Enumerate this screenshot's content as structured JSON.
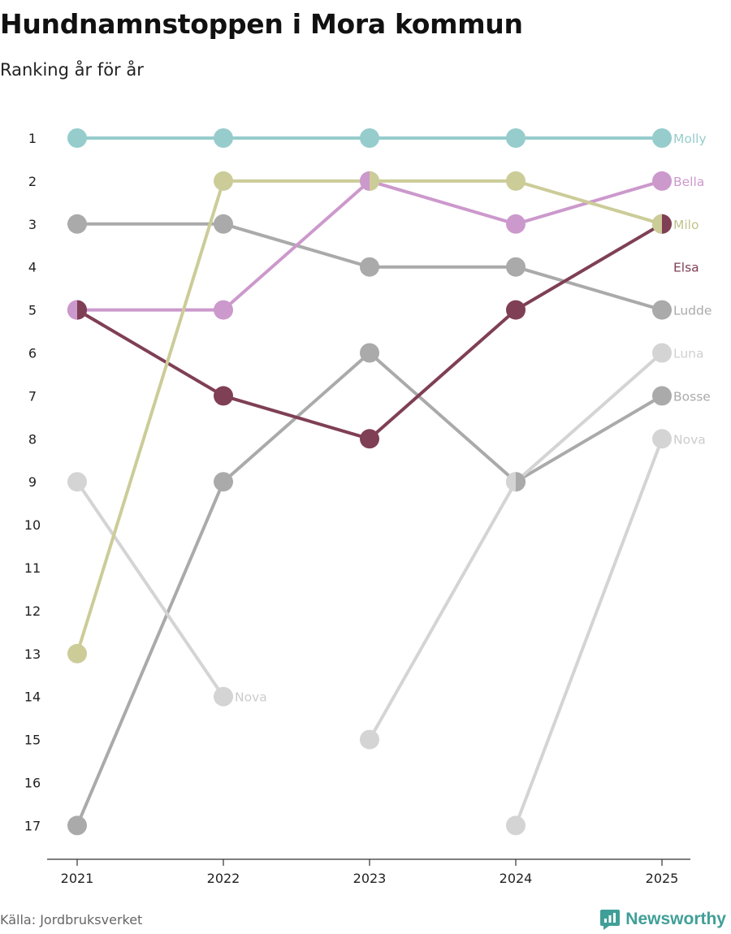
{
  "chart_data": {
    "type": "line",
    "title": "Hundnamnstoppen i Mora kommun",
    "subtitle": "Ranking år för år",
    "xlabel": "",
    "ylabel": "",
    "x": [
      "2021",
      "2022",
      "2023",
      "2024",
      "2025"
    ],
    "yticks": [
      1,
      2,
      3,
      4,
      5,
      6,
      7,
      8,
      9,
      10,
      11,
      12,
      13,
      14,
      15,
      16,
      17
    ],
    "ylim": [
      1,
      17
    ],
    "y_inverted": true,
    "series": [
      {
        "name": "Molly",
        "color": "#96cccc",
        "values": [
          1,
          1,
          1,
          1,
          1
        ],
        "label": "Molly",
        "label_color": "#96cccc"
      },
      {
        "name": "Milo",
        "color": "#cccc99",
        "values": [
          13,
          2,
          2,
          2,
          3
        ],
        "label": "Milo",
        "label_color": "#c2c28c"
      },
      {
        "name": "Bella",
        "color": "#cc99cc",
        "values": [
          5,
          5,
          2,
          3,
          2
        ],
        "label": "Bella",
        "label_color": "#cc99cc"
      },
      {
        "name": "Ludde",
        "color": "#aaaaaa",
        "values": [
          3,
          3,
          4,
          4,
          5
        ],
        "label": "Ludde",
        "label_color": "#aaaaaa"
      },
      {
        "name": "Elsa",
        "color": "#7f3f55",
        "values": [
          5,
          7,
          8,
          5,
          3
        ],
        "label": "Elsa",
        "label_color": "#7f3f55"
      },
      {
        "name": "Bosse",
        "color": "#aaaaaa",
        "values": [
          17,
          9,
          6,
          9,
          7
        ],
        "label": "Bosse",
        "label_color": "#aaaaaa"
      },
      {
        "name": "Luna",
        "color": "#d4d4d4",
        "values": [
          null,
          null,
          15,
          9,
          6
        ],
        "label": "Luna",
        "label_color": "#d0d0d0"
      },
      {
        "name": "Nova",
        "color": "#d4d4d4",
        "values": [
          9,
          14,
          null,
          null,
          null
        ],
        "label": "Nova",
        "label_color": "#cccccc"
      },
      {
        "name": "Nova",
        "color": "#d4d4d4",
        "values": [
          null,
          null,
          null,
          17,
          8
        ],
        "label": "Nova",
        "label_color": "#cccccc"
      }
    ],
    "split_points": [
      {
        "x": "2021",
        "value": 5,
        "left": "#cc99cc",
        "right": "#7f3f55"
      },
      {
        "x": "2023",
        "value": 2,
        "left": "#cc99cc",
        "right": "#cccc99"
      },
      {
        "x": "2024",
        "value": 9,
        "left": "#d4d4d4",
        "right": "#aaaaaa"
      },
      {
        "x": "2025",
        "value": 3,
        "left": "#cccc99",
        "right": "#7f3f55"
      }
    ]
  },
  "source": "Källa: Jordbruksverket",
  "brand": "Newsworthy",
  "brand_color": "#3f9f98"
}
